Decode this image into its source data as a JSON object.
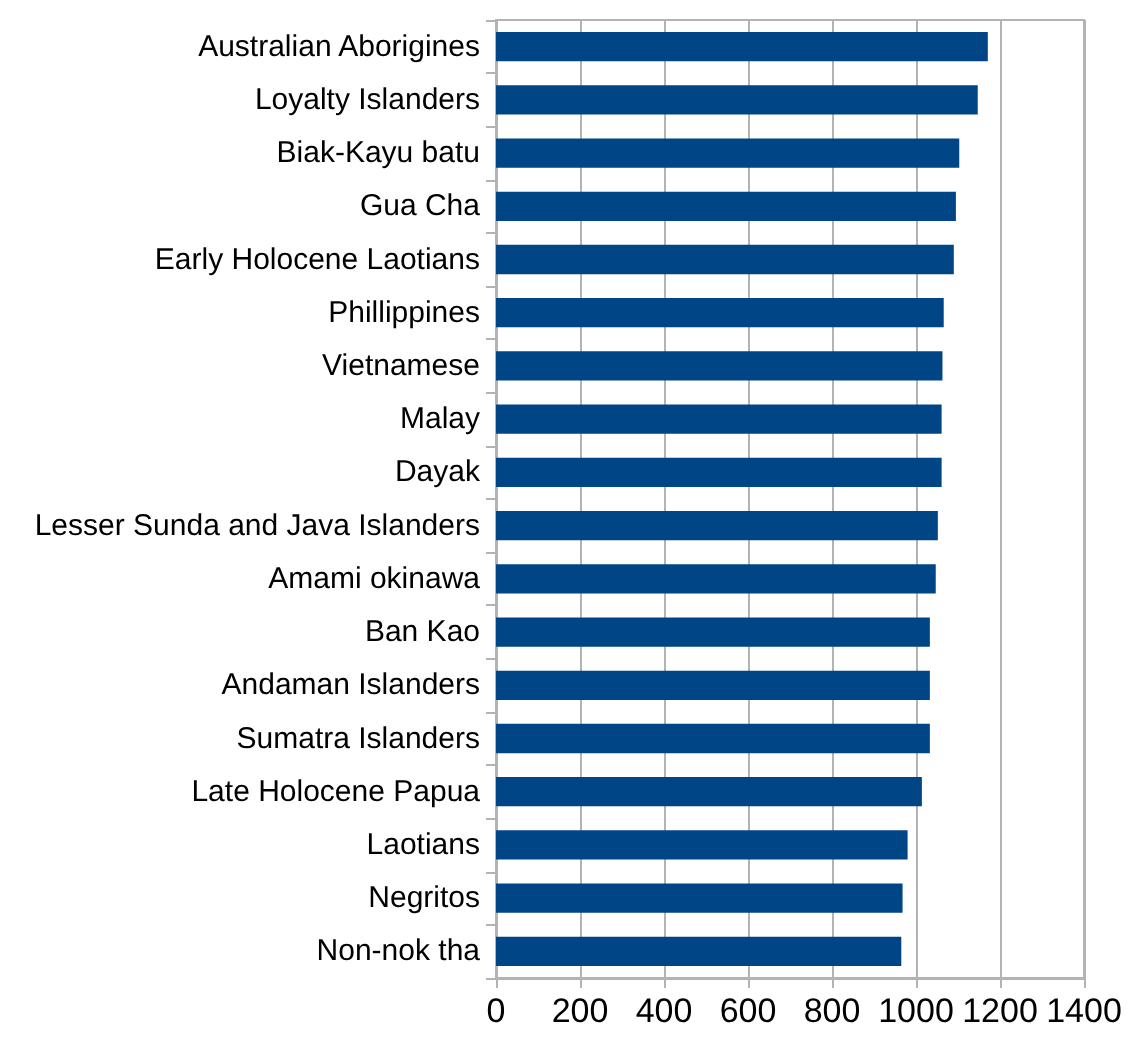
{
  "chart_data": {
    "type": "bar",
    "orientation": "horizontal",
    "categories": [
      "Australian Aborigines",
      "Loyalty Islanders",
      "Biak-Kayu batu",
      "Gua Cha",
      "Early Holocene Laotians",
      "Phillippines",
      "Vietnamese",
      "Malay",
      "Dayak",
      "Lesser Sunda and Java Islanders",
      "Amami okinawa",
      "Ban Kao",
      "Andaman Islanders",
      "Sumatra Islanders",
      "Late Holocene Papua",
      "Laotians",
      "Negritos",
      "Non-nok tha"
    ],
    "values": [
      1171,
      1147,
      1103,
      1095,
      1090,
      1066,
      1063,
      1061,
      1061,
      1052,
      1047,
      1033,
      1033,
      1033,
      1014,
      980,
      968,
      965
    ],
    "color": "#004586",
    "xlim": [
      0,
      1400
    ],
    "xticks": [
      0,
      200,
      400,
      600,
      800,
      1000,
      1200,
      1400
    ],
    "grid": "x"
  }
}
